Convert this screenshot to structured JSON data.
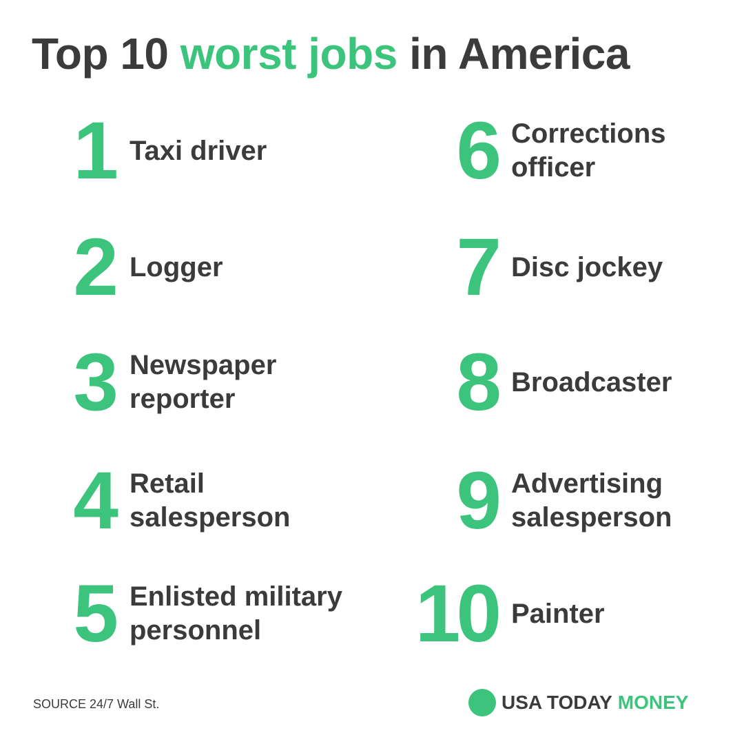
{
  "title": {
    "part1": "Top 10",
    "accent": "worst jobs",
    "part2": "in America"
  },
  "jobs": [
    {
      "rank": "1",
      "label_line1": "Taxi driver",
      "label_line2": ""
    },
    {
      "rank": "2",
      "label_line1": "Logger",
      "label_line2": ""
    },
    {
      "rank": "3",
      "label_line1": "Newspaper",
      "label_line2": "reporter"
    },
    {
      "rank": "4",
      "label_line1": "Retail",
      "label_line2": "salesperson"
    },
    {
      "rank": "5",
      "label_line1": "Enlisted military",
      "label_line2": "personnel"
    },
    {
      "rank": "6",
      "label_line1": "Corrections",
      "label_line2": "officer"
    },
    {
      "rank": "7",
      "label_line1": "Disc jockey",
      "label_line2": ""
    },
    {
      "rank": "8",
      "label_line1": "Broadcaster",
      "label_line2": ""
    },
    {
      "rank": "9",
      "label_line1": "Advertising",
      "label_line2": "salesperson"
    },
    {
      "rank": "10",
      "label_line1": "Painter",
      "label_line2": ""
    }
  ],
  "footer": {
    "source": "SOURCE 24/7 Wall St.",
    "brand_usa": "USA TODAY",
    "brand_money": "MONEY"
  },
  "colors": {
    "accent": "#3cc47c",
    "text": "#3b3b3b",
    "background": "#ffffff"
  }
}
